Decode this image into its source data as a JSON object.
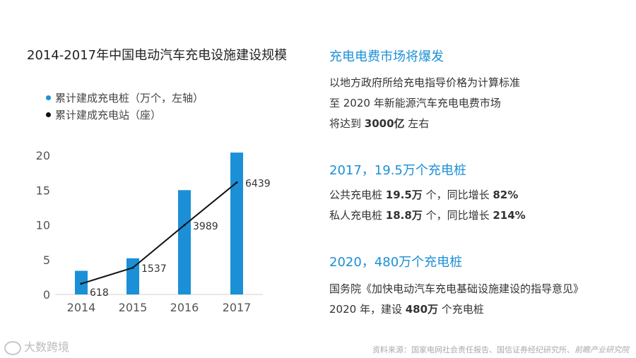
{
  "chart_data": {
    "type": "bar+line",
    "title": "2014-2017年中国电动汽车充电设施建设规模",
    "categories": [
      "2014",
      "2015",
      "2016",
      "2017"
    ],
    "series": [
      {
        "name": "累计建成充电桩（万个，左轴）",
        "type": "bar",
        "values": [
          3.4,
          5.2,
          15.0,
          20.4
        ],
        "color": "#1b90d6"
      },
      {
        "name": "累计建成充电站（座）",
        "type": "line",
        "values": [
          618,
          1537,
          3989,
          6439
        ],
        "color": "#111111"
      }
    ],
    "ylim": [
      0,
      20
    ],
    "yticks": [
      "0",
      "5",
      "10",
      "15",
      "20"
    ],
    "y2lim": [
      0,
      8000
    ],
    "grid": false,
    "legend_position": "top-left"
  },
  "panel": {
    "h1": "充电电费市场将爆发",
    "p1_l1": "以地方政府所给充电指导价格为计算标准",
    "p1_l2": "至 2020 年新能源汽车充电电费市场",
    "p1_l3a": "将达到 ",
    "p1_l3b": "3000亿",
    "p1_l3c": " 左右",
    "h2": "2017，19.5万个充电桩",
    "p2_l1a": "公共充电桩 ",
    "p2_l1b": "19.5万",
    "p2_l1c": " 个，同比增长 ",
    "p2_l1d": "82%",
    "p2_l2a": "私人充电桩 ",
    "p2_l2b": "18.8万",
    "p2_l2c": " 个，同比增长 ",
    "p2_l2d": "214%",
    "h3": "2020，480万个充电桩",
    "p3_l1": "国务院《加快电动汽车充电基础设施建设的指导意见》",
    "p3_l2a": "2020 年，建设 ",
    "p3_l2b": "480万",
    "p3_l2c": " 个充电桩"
  },
  "source": {
    "prefix": "资料来源：国家电网社会责任报告、国信证券经纪研究所、",
    "emph": "前瞻产业研究院"
  },
  "logo": {
    "text": "大数跨境"
  }
}
